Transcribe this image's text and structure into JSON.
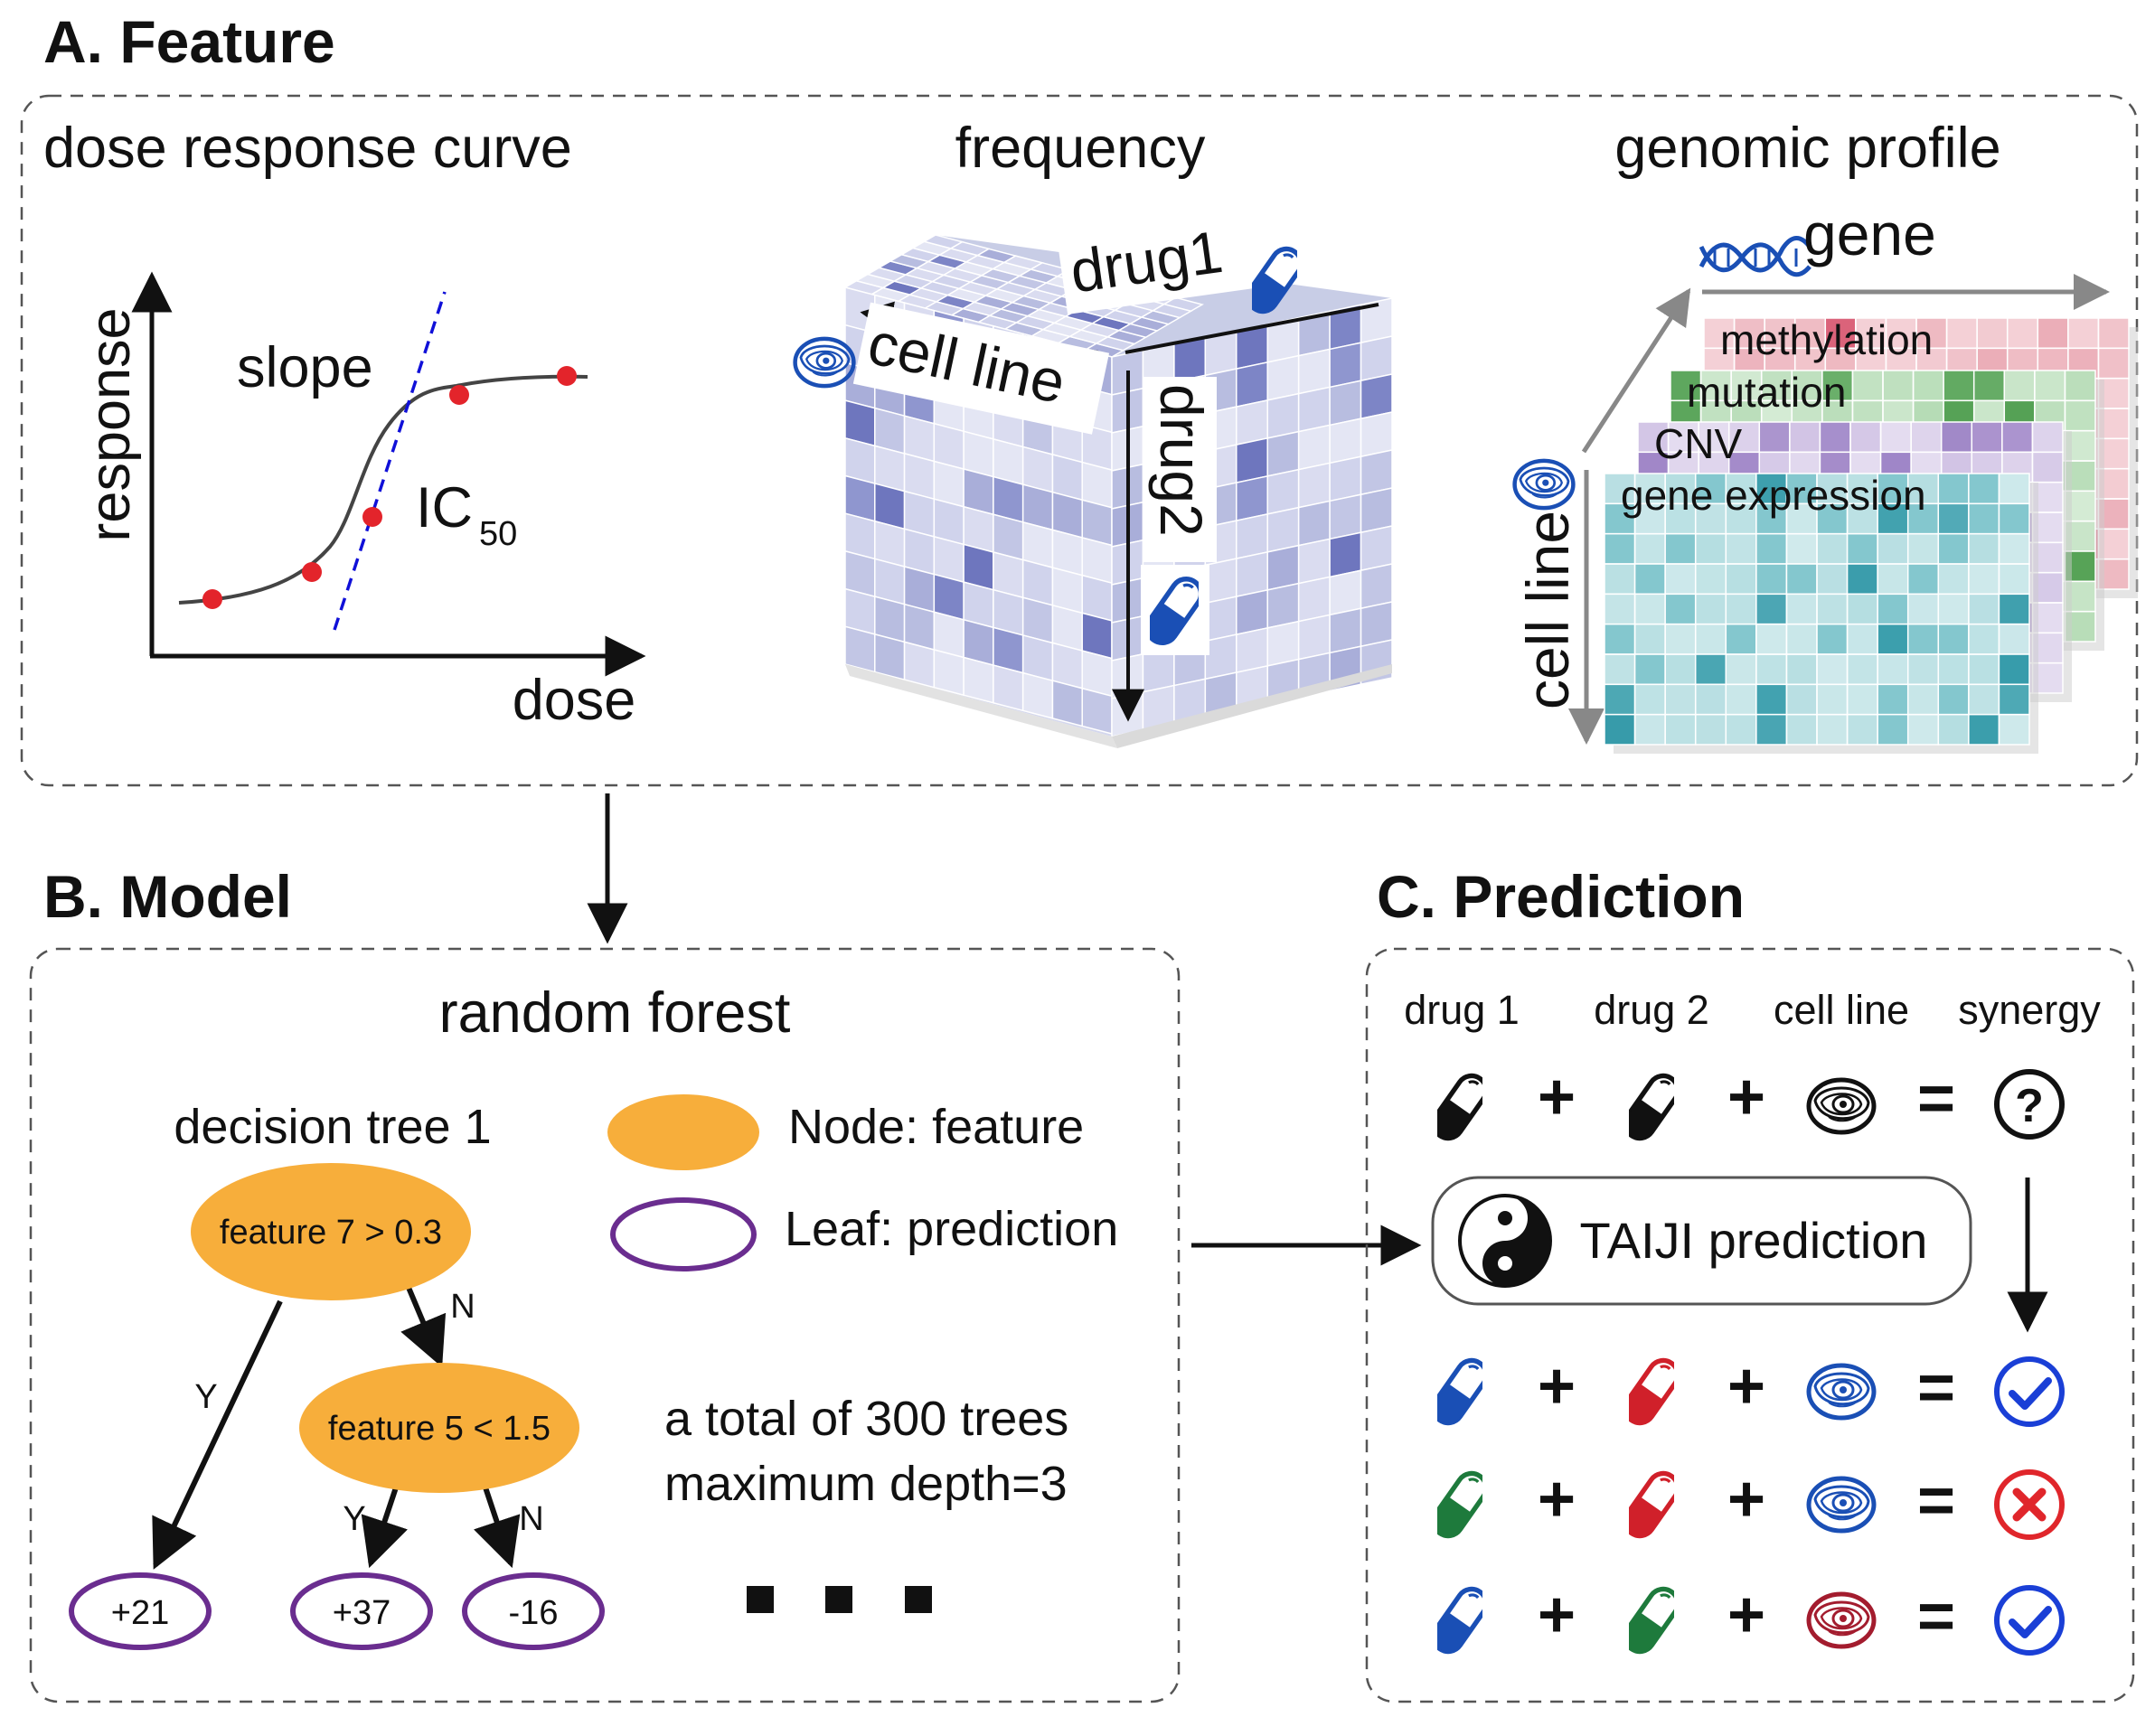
{
  "feature": {
    "title": "A. Feature",
    "dose_title": "dose response curve",
    "dose_ylabel": "response",
    "dose_xlabel": "dose",
    "slope_label": "slope",
    "ic_label": "IC",
    "ic_sub": "50",
    "freq_title": "frequency",
    "freq_drug1": "drug1",
    "freq_cellline": "cell line",
    "freq_drug2": "drug2",
    "genomic_title": "genomic profile",
    "genomic_gene": "gene",
    "genomic_cellline": "cell line",
    "layers": [
      "methylation",
      "mutation",
      "CNV",
      "gene expression"
    ],
    "layer_colors": [
      "#e8a0ac",
      "#a9d6a9",
      "#c9b8e0",
      "#a8d8dc"
    ]
  },
  "model": {
    "title": "B. Model",
    "subtitle": "random forest",
    "tree_title": "decision tree 1",
    "legend_node": "Node: feature",
    "legend_leaf": "Leaf: prediction",
    "node1": "feature 7 > 0.3",
    "node2": "feature 5 < 1.5",
    "edge_yes": "Y",
    "edge_no": "N",
    "leaves": [
      "+21",
      "+37",
      "-16"
    ],
    "note1": "a total of 300 trees",
    "note2": "maximum depth=3",
    "node_color": "#f7ae3b",
    "leaf_color": "#6a2d8f"
  },
  "prediction": {
    "title": "C. Prediction",
    "headers": [
      "drug 1",
      "drug 2",
      "cell line",
      "synergy"
    ],
    "plus": "+",
    "equals": "=",
    "unknown": "?",
    "taiji": "TAIJI prediction",
    "rows": [
      {
        "drug1": "#1a4fb5",
        "drug2": "#d0202a",
        "cell": "#1a4fb5",
        "result": "check",
        "result_color": "#1a3fd6"
      },
      {
        "drug1": "#1e7a3c",
        "drug2": "#d0202a",
        "cell": "#1a4fb5",
        "result": "cross",
        "result_color": "#e0262b"
      },
      {
        "drug1": "#1a4fb5",
        "drug2": "#1e7a3c",
        "cell": "#a31c2e",
        "result": "check",
        "result_color": "#1a3fd6"
      }
    ]
  }
}
